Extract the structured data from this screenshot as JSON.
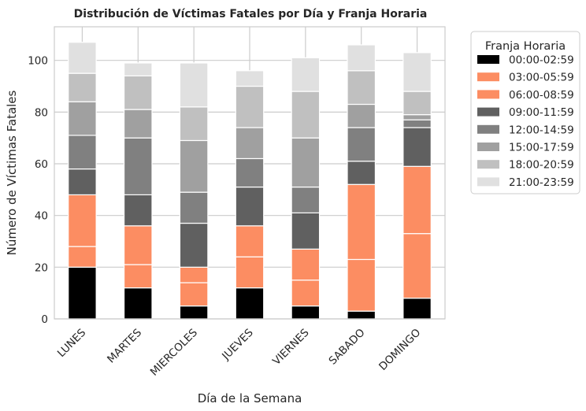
{
  "chart_data": {
    "type": "bar",
    "stacked": true,
    "title": "Distribución de Víctimas Fatales por Día y Franja Horaria",
    "xlabel": "Día de la Semana",
    "ylabel": "Número de Víctimas Fatales",
    "ylim": [
      0,
      113
    ],
    "yticks": [
      0,
      20,
      40,
      60,
      80,
      100
    ],
    "grid": true,
    "categories": [
      "LUNES",
      "MARTES",
      "MIERCOLES",
      "JUEVES",
      "VIERNES",
      "SABADO",
      "DOMINGO"
    ],
    "legend": {
      "title": "Franja Horaria",
      "placement": "outside-upper-right"
    },
    "series": [
      {
        "name": "00:00-02:59",
        "color": "#000000",
        "values": [
          20,
          12,
          5,
          12,
          5,
          3,
          8
        ]
      },
      {
        "name": "03:00-05:59",
        "color": "#fc8d62",
        "values": [
          8,
          9,
          9,
          12,
          10,
          20,
          25
        ]
      },
      {
        "name": "06:00-08:59",
        "color": "#fc8d62",
        "values": [
          20,
          15,
          6,
          12,
          12,
          29,
          26
        ]
      },
      {
        "name": "09:00-11:59",
        "color": "#606060",
        "values": [
          10,
          12,
          17,
          15,
          14,
          9,
          15
        ]
      },
      {
        "name": "12:00-14:59",
        "color": "#808080",
        "values": [
          13,
          22,
          12,
          11,
          10,
          13,
          3
        ]
      },
      {
        "name": "15:00-17:59",
        "color": "#a0a0a0",
        "values": [
          13,
          11,
          20,
          12,
          19,
          9,
          2
        ]
      },
      {
        "name": "18:00-20:59",
        "color": "#c0c0c0",
        "values": [
          11,
          13,
          13,
          16,
          18,
          13,
          9
        ]
      },
      {
        "name": "21:00-23:59",
        "color": "#e0e0e0",
        "values": [
          12,
          5,
          17,
          6,
          13,
          10,
          15
        ]
      }
    ]
  }
}
